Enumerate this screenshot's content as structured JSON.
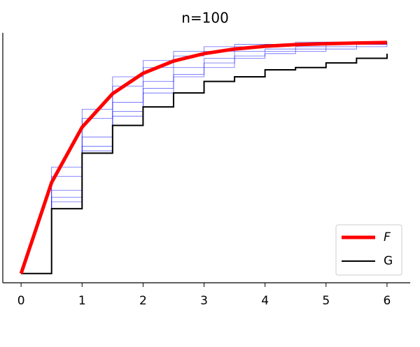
{
  "chart_data": {
    "type": "step-line",
    "title": "n=100",
    "x": [
      0,
      0.5,
      1,
      1.5,
      2,
      2.5,
      3,
      3.5,
      4,
      4.5,
      5,
      5.5,
      6
    ],
    "xlim": [
      -0.3,
      6.38
    ],
    "xticks": [
      0,
      1,
      2,
      3,
      4,
      5,
      6
    ],
    "ylim": [
      -0.04,
      1.04
    ],
    "legend": "lower right",
    "series": [
      {
        "color": "#0000ff",
        "step": true,
        "values": [
          0,
          0.33,
          0.55,
          0.7,
          0.8,
          0.86,
          0.91,
          0.94,
          0.96,
          0.97,
          0.98,
          0.99,
          0.99
        ]
      },
      {
        "color": "#0000ff",
        "step": true,
        "values": [
          0,
          0.36,
          0.59,
          0.74,
          0.83,
          0.89,
          0.93,
          0.96,
          0.97,
          0.98,
          0.99,
          0.99,
          1.0
        ]
      },
      {
        "color": "#0000ff",
        "step": true,
        "values": [
          0,
          0.42,
          0.67,
          0.81,
          0.89,
          0.94,
          0.96,
          0.98,
          0.99,
          0.99,
          1.0,
          1.0,
          1.0
        ]
      },
      {
        "color": "#0000ff",
        "step": true,
        "values": [
          0,
          0.46,
          0.71,
          0.85,
          0.92,
          0.96,
          0.98,
          0.99,
          0.99,
          1.0,
          1.0,
          1.0,
          1.0
        ]
      },
      {
        "color": "#0000ff",
        "step": true,
        "values": [
          0,
          0.31,
          0.53,
          0.68,
          0.78,
          0.85,
          0.89,
          0.93,
          0.95,
          0.96,
          0.97,
          0.98,
          0.99
        ]
      },
      {
        "name": "G",
        "color": "#000000",
        "step": true,
        "values": [
          0,
          0.28,
          0.52,
          0.64,
          0.72,
          0.78,
          0.83,
          0.85,
          0.88,
          0.89,
          0.91,
          0.93,
          0.95
        ]
      },
      {
        "name": "F",
        "color": "#ff0000",
        "italic": true,
        "values": [
          0,
          0.393,
          0.632,
          0.777,
          0.865,
          0.918,
          0.95,
          0.97,
          0.982,
          0.989,
          0.993,
          0.996,
          0.998
        ]
      }
    ]
  }
}
